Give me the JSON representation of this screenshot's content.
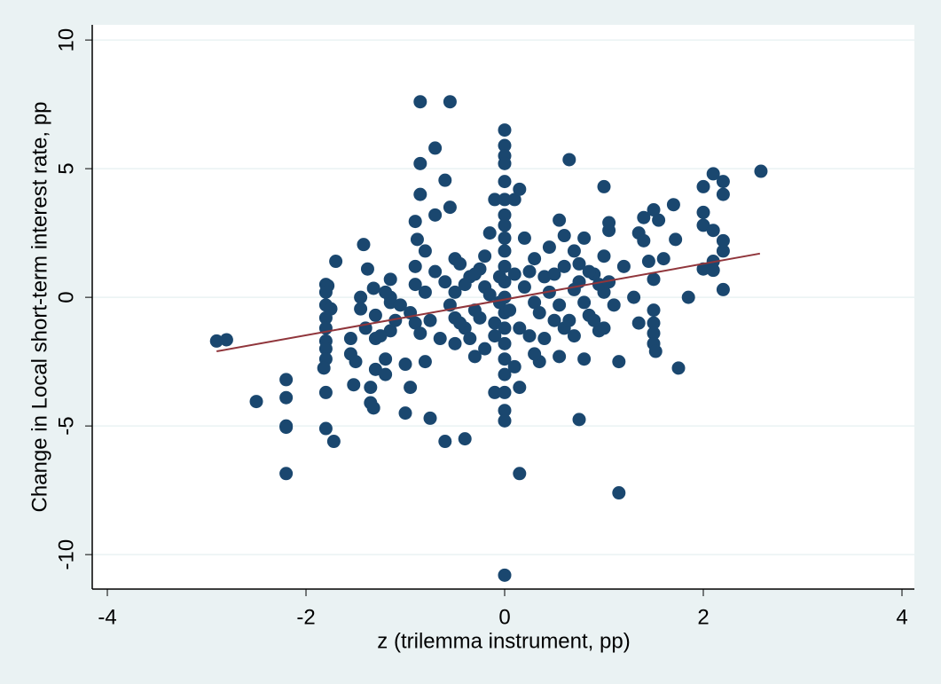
{
  "chart_data": {
    "type": "scatter",
    "x_label": "z (trilemma instrument, pp)",
    "y_label": "Change in Local short-term interest rate, pp",
    "xlim": [
      -4.152,
      4.125
    ],
    "ylim": [
      -11.34,
      10.59
    ],
    "xticks": [
      -4,
      -2,
      0,
      2,
      4
    ],
    "yticks": [
      -10,
      -5,
      0,
      5,
      10
    ],
    "grid": true,
    "point_color": "#1a476f",
    "points": [
      {
        "x": -2.9,
        "y": -1.7
      },
      {
        "x": -2.8,
        "y": -1.65
      },
      {
        "x": -2.5,
        "y": -4.05
      },
      {
        "x": -2.2,
        "y": -3.2
      },
      {
        "x": -2.2,
        "y": -3.9
      },
      {
        "x": -2.2,
        "y": -5.0
      },
      {
        "x": -2.2,
        "y": -5.05
      },
      {
        "x": -2.2,
        "y": -6.85
      },
      {
        "x": -1.8,
        "y": 0.5
      },
      {
        "x": -1.78,
        "y": 0.45
      },
      {
        "x": -1.8,
        "y": 0.2
      },
      {
        "x": -1.8,
        "y": -0.3
      },
      {
        "x": -1.8,
        "y": -0.8
      },
      {
        "x": -1.8,
        "y": -1.2
      },
      {
        "x": -1.8,
        "y": -1.7
      },
      {
        "x": -1.8,
        "y": -2.0
      },
      {
        "x": -1.8,
        "y": -2.4
      },
      {
        "x": -1.82,
        "y": -2.75
      },
      {
        "x": -1.8,
        "y": -3.7
      },
      {
        "x": -1.8,
        "y": -5.1
      },
      {
        "x": -1.72,
        "y": -5.6
      },
      {
        "x": -1.75,
        "y": -0.45
      },
      {
        "x": -1.7,
        "y": 1.4
      },
      {
        "x": -1.55,
        "y": -1.6
      },
      {
        "x": -1.55,
        "y": -2.2
      },
      {
        "x": -1.52,
        "y": -3.4
      },
      {
        "x": -1.5,
        "y": -2.5
      },
      {
        "x": -1.45,
        "y": 0.0
      },
      {
        "x": -1.45,
        "y": -0.45
      },
      {
        "x": -1.42,
        "y": 2.05
      },
      {
        "x": -1.4,
        "y": -1.2
      },
      {
        "x": -1.38,
        "y": 1.1
      },
      {
        "x": -1.35,
        "y": -3.5
      },
      {
        "x": -1.35,
        "y": -4.1
      },
      {
        "x": -1.32,
        "y": -4.3
      },
      {
        "x": -1.3,
        "y": -2.8
      },
      {
        "x": -1.3,
        "y": -1.6
      },
      {
        "x": -1.3,
        "y": -0.7
      },
      {
        "x": -1.32,
        "y": 0.35
      },
      {
        "x": -1.2,
        "y": -2.4
      },
      {
        "x": -1.2,
        "y": -3.0
      },
      {
        "x": -1.15,
        "y": -1.3
      },
      {
        "x": -1.15,
        "y": -0.2
      },
      {
        "x": -1.15,
        "y": 0.0
      },
      {
        "x": -1.15,
        "y": 0.7
      },
      {
        "x": -1.0,
        "y": -4.5
      },
      {
        "x": -1.0,
        "y": -2.6
      },
      {
        "x": -0.95,
        "y": -3.5
      },
      {
        "x": -0.9,
        "y": -1.0
      },
      {
        "x": -0.9,
        "y": 0.5
      },
      {
        "x": -0.9,
        "y": 1.2
      },
      {
        "x": -0.88,
        "y": 2.25
      },
      {
        "x": -0.9,
        "y": 2.95
      },
      {
        "x": -0.85,
        "y": 4.0
      },
      {
        "x": -0.85,
        "y": 5.2
      },
      {
        "x": -0.85,
        "y": 7.6
      },
      {
        "x": -0.8,
        "y": 1.8
      },
      {
        "x": -0.75,
        "y": -4.7
      },
      {
        "x": -0.7,
        "y": 3.2
      },
      {
        "x": -0.7,
        "y": 5.8
      },
      {
        "x": -0.6,
        "y": 4.55
      },
      {
        "x": -0.6,
        "y": -5.6
      },
      {
        "x": -0.55,
        "y": 3.5
      },
      {
        "x": -0.55,
        "y": 7.6
      },
      {
        "x": -0.4,
        "y": -5.5
      },
      {
        "x": -0.5,
        "y": 1.5
      },
      {
        "x": -0.5,
        "y": 0.2
      },
      {
        "x": -0.5,
        "y": -0.8
      },
      {
        "x": -0.5,
        "y": -1.8
      },
      {
        "x": -0.4,
        "y": -1.2
      },
      {
        "x": -0.35,
        "y": 0.8
      },
      {
        "x": -0.3,
        "y": -0.5
      },
      {
        "x": -0.25,
        "y": 1.1
      },
      {
        "x": -0.2,
        "y": -2.0
      },
      {
        "x": -0.2,
        "y": 0.4
      },
      {
        "x": -0.15,
        "y": 2.5
      },
      {
        "x": -0.1,
        "y": -1.0
      },
      {
        "x": -0.1,
        "y": 3.8
      },
      {
        "x": -0.1,
        "y": -3.7
      },
      {
        "x": -0.05,
        "y": -0.2
      },
      {
        "x": 0,
        "y": 6.5
      },
      {
        "x": 0,
        "y": 5.9
      },
      {
        "x": 0,
        "y": 5.5
      },
      {
        "x": 0,
        "y": 5.2
      },
      {
        "x": 0,
        "y": 4.5
      },
      {
        "x": 0,
        "y": 3.8
      },
      {
        "x": 0,
        "y": 3.2
      },
      {
        "x": 0,
        "y": 2.8
      },
      {
        "x": 0,
        "y": 2.3
      },
      {
        "x": 0,
        "y": 1.8
      },
      {
        "x": 0,
        "y": 1.2
      },
      {
        "x": 0,
        "y": 0.6
      },
      {
        "x": 0,
        "y": 0
      },
      {
        "x": 0,
        "y": -0.6
      },
      {
        "x": 0,
        "y": -1.2
      },
      {
        "x": 0,
        "y": -1.8
      },
      {
        "x": 0,
        "y": -2.4
      },
      {
        "x": 0,
        "y": -3.0
      },
      {
        "x": 0,
        "y": -3.7
      },
      {
        "x": 0,
        "y": -4.4
      },
      {
        "x": 0,
        "y": -4.8
      },
      {
        "x": 0,
        "y": -10.8
      },
      {
        "x": 0.1,
        "y": 3.8
      },
      {
        "x": 0.15,
        "y": 4.2
      },
      {
        "x": 0.1,
        "y": -2.7
      },
      {
        "x": 0.15,
        "y": -3.5
      },
      {
        "x": 0.15,
        "y": -6.85
      },
      {
        "x": 0.2,
        "y": 2.3
      },
      {
        "x": 0.25,
        "y": -1.5
      },
      {
        "x": 0.3,
        "y": 1.5
      },
      {
        "x": 0.3,
        "y": -0.2
      },
      {
        "x": 0.35,
        "y": -2.5
      },
      {
        "x": 0.4,
        "y": 0.8
      },
      {
        "x": 0.45,
        "y": 1.95
      },
      {
        "x": 0.5,
        "y": -0.9
      },
      {
        "x": 0.55,
        "y": 3.0
      },
      {
        "x": 0.6,
        "y": 2.4
      },
      {
        "x": 0.6,
        "y": -1.2
      },
      {
        "x": 0.65,
        "y": 5.35
      },
      {
        "x": 0.7,
        "y": 0.3
      },
      {
        "x": 0.75,
        "y": -4.75
      },
      {
        "x": 0.75,
        "y": 1.3
      },
      {
        "x": 0.8,
        "y": -2.4
      },
      {
        "x": 0.8,
        "y": 2.3
      },
      {
        "x": 0.85,
        "y": -0.7
      },
      {
        "x": 0.9,
        "y": 0.9
      },
      {
        "x": 0.95,
        "y": -1.3
      },
      {
        "x": 1.0,
        "y": 0.2
      },
      {
        "x": 1.0,
        "y": 1.6
      },
      {
        "x": 1.05,
        "y": 2.6
      },
      {
        "x": 1.05,
        "y": 2.9
      },
      {
        "x": 1.0,
        "y": 4.3
      },
      {
        "x": 1.1,
        "y": -0.3
      },
      {
        "x": 1.15,
        "y": -2.5
      },
      {
        "x": 1.15,
        "y": -7.6
      },
      {
        "x": 1.2,
        "y": 1.2
      },
      {
        "x": 1.3,
        "y": 0.0
      },
      {
        "x": 1.35,
        "y": -1.0
      },
      {
        "x": 1.35,
        "y": 2.5
      },
      {
        "x": 1.4,
        "y": 3.1
      },
      {
        "x": 1.4,
        "y": 2.2
      },
      {
        "x": 1.45,
        "y": 1.4
      },
      {
        "x": 1.5,
        "y": 0.7
      },
      {
        "x": 1.5,
        "y": -0.5
      },
      {
        "x": 1.5,
        "y": -1.0
      },
      {
        "x": 1.5,
        "y": -1.4
      },
      {
        "x": 1.5,
        "y": -1.8
      },
      {
        "x": 1.52,
        "y": -2.1
      },
      {
        "x": 1.5,
        "y": 3.4
      },
      {
        "x": 1.55,
        "y": 3.0
      },
      {
        "x": 1.6,
        "y": 1.5
      },
      {
        "x": 1.7,
        "y": 3.6
      },
      {
        "x": 1.72,
        "y": 2.25
      },
      {
        "x": 1.75,
        "y": -2.75
      },
      {
        "x": 1.85,
        "y": 0.0
      },
      {
        "x": 2.0,
        "y": 1.1
      },
      {
        "x": 2.0,
        "y": 2.8
      },
      {
        "x": 2.0,
        "y": 3.3
      },
      {
        "x": 2.0,
        "y": 4.3
      },
      {
        "x": 2.1,
        "y": 4.8
      },
      {
        "x": 2.1,
        "y": 2.6
      },
      {
        "x": 2.1,
        "y": 1.4
      },
      {
        "x": 2.1,
        "y": 1.05
      },
      {
        "x": 2.2,
        "y": 0.3
      },
      {
        "x": 2.2,
        "y": 1.8
      },
      {
        "x": 2.2,
        "y": 2.2
      },
      {
        "x": 2.2,
        "y": 4.0
      },
      {
        "x": 2.2,
        "y": 4.5
      },
      {
        "x": 2.58,
        "y": 4.9
      },
      {
        "x": -1.05,
        "y": -0.3
      },
      {
        "x": -0.95,
        "y": -0.6
      },
      {
        "x": -0.85,
        "y": -1.4
      },
      {
        "x": -0.8,
        "y": 0.2
      },
      {
        "x": -0.75,
        "y": -0.9
      },
      {
        "x": -0.7,
        "y": 1.0
      },
      {
        "x": -0.65,
        "y": -1.6
      },
      {
        "x": -0.6,
        "y": 0.6
      },
      {
        "x": -0.55,
        "y": -0.3
      },
      {
        "x": -0.45,
        "y": -1.0
      },
      {
        "x": -0.4,
        "y": 0.5
      },
      {
        "x": -0.35,
        "y": -1.6
      },
      {
        "x": -0.3,
        "y": 0.9
      },
      {
        "x": -0.25,
        "y": -0.8
      },
      {
        "x": -0.2,
        "y": 1.6
      },
      {
        "x": -0.15,
        "y": 0.1
      },
      {
        "x": -0.1,
        "y": -1.5
      },
      {
        "x": -0.05,
        "y": 0.8
      },
      {
        "x": 0.05,
        "y": -0.5
      },
      {
        "x": 0.1,
        "y": 0.9
      },
      {
        "x": 0.15,
        "y": -1.2
      },
      {
        "x": 0.2,
        "y": 0.4
      },
      {
        "x": 0.25,
        "y": 1.0
      },
      {
        "x": 0.35,
        "y": -0.6
      },
      {
        "x": 0.4,
        "y": -1.6
      },
      {
        "x": 0.45,
        "y": 0.2
      },
      {
        "x": 0.5,
        "y": 0.9
      },
      {
        "x": 0.55,
        "y": -0.3
      },
      {
        "x": 0.6,
        "y": 1.2
      },
      {
        "x": 0.65,
        "y": -0.9
      },
      {
        "x": 0.7,
        "y": -1.5
      },
      {
        "x": 0.75,
        "y": 0.6
      },
      {
        "x": 0.8,
        "y": -0.2
      },
      {
        "x": 0.85,
        "y": 1.0
      },
      {
        "x": 0.9,
        "y": -0.9
      },
      {
        "x": 0.95,
        "y": 0.5
      },
      {
        "x": 1.0,
        "y": -1.2
      },
      {
        "x": 1.05,
        "y": 0.6
      },
      {
        "x": -1.2,
        "y": 0.2
      },
      {
        "x": -1.1,
        "y": -0.9
      },
      {
        "x": -1.25,
        "y": -1.5
      },
      {
        "x": 0.3,
        "y": -2.2
      },
      {
        "x": -0.3,
        "y": -2.3
      },
      {
        "x": 0.55,
        "y": -2.3
      },
      {
        "x": -0.8,
        "y": -2.5
      },
      {
        "x": 0.7,
        "y": 1.8
      },
      {
        "x": -0.45,
        "y": 1.3
      }
    ],
    "fit_line": {
      "x": [
        -2.9,
        2.57
      ],
      "y": [
        -2.1,
        1.7
      ],
      "color": "#90353b"
    }
  }
}
